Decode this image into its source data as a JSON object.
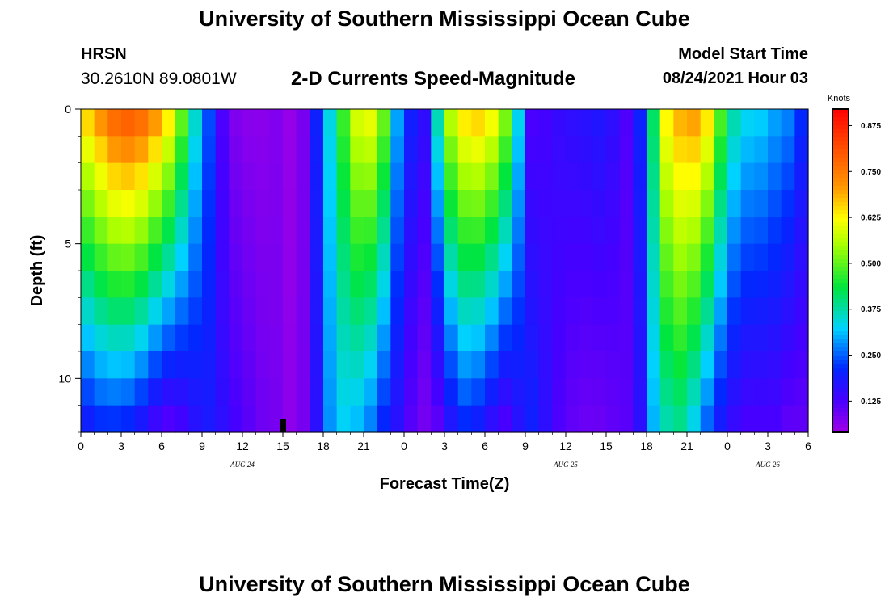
{
  "header": {
    "title": "University of Southern Mississippi Ocean Cube",
    "station": "HRSN",
    "coordinates": "30.2610N  89.0801W",
    "subtitle": "2-D Currents Speed-Magnitude",
    "model_start_label": "Model Start Time",
    "model_start_value": "08/24/2021 Hour 03"
  },
  "footer": {
    "title": "University of Southern Mississippi Ocean Cube"
  },
  "chart_data": {
    "type": "heatmap",
    "title": "2-D Currents Speed-Magnitude",
    "xlabel": "Forecast Time(Z)",
    "ylabel": "Depth (ft)",
    "x_hours_range": [
      0,
      54
    ],
    "x_tick_labels": [
      "0",
      "3",
      "6",
      "9",
      "12",
      "15",
      "18",
      "21",
      "0",
      "3",
      "6",
      "9",
      "12",
      "15",
      "18",
      "21",
      "0",
      "3",
      "6"
    ],
    "date_labels": [
      {
        "label": "AUG 24",
        "hour": 12
      },
      {
        "label": "AUG 25",
        "hour": 36
      },
      {
        "label": "AUG 26",
        "hour": 51
      }
    ],
    "y_range_ft": [
      0,
      12
    ],
    "y_tick_labels": [
      "0",
      "5",
      "10"
    ],
    "y_tick_values": [
      0,
      5,
      10
    ],
    "current_time_marker_hour": 15,
    "colorbar": {
      "title": "Knots",
      "range": [
        0.04,
        0.92
      ],
      "tick_labels": [
        "0.875",
        "0.750",
        "0.625",
        "0.500",
        "0.375",
        "0.250",
        "0.125"
      ],
      "tick_values": [
        0.875,
        0.75,
        0.625,
        0.5,
        0.375,
        0.25,
        0.125
      ]
    },
    "columns_per_hour": 1,
    "surface_speed_by_hour": [
      0.68,
      0.74,
      0.8,
      0.82,
      0.8,
      0.74,
      0.66,
      0.52,
      0.36,
      0.24,
      0.12,
      0.07,
      0.06,
      0.06,
      0.07,
      0.05,
      0.08,
      0.2,
      0.34,
      0.48,
      0.6,
      0.62,
      0.52,
      0.3,
      0.2,
      0.16,
      0.38,
      0.58,
      0.66,
      0.68,
      0.64,
      0.54,
      0.34,
      0.12,
      0.13,
      0.15,
      0.16,
      0.17,
      0.18,
      0.16,
      0.12,
      0.2,
      0.42,
      0.64,
      0.7,
      0.72,
      0.66,
      0.5,
      0.38,
      0.34,
      0.33,
      0.3,
      0.28,
      0.22,
      0.18
    ],
    "bottom_speed_by_hour": [
      0.18,
      0.2,
      0.2,
      0.19,
      0.16,
      0.12,
      0.1,
      0.12,
      0.16,
      0.18,
      0.16,
      0.13,
      0.11,
      0.09,
      0.08,
      0.06,
      0.08,
      0.16,
      0.28,
      0.32,
      0.3,
      0.26,
      0.2,
      0.16,
      0.11,
      0.08,
      0.1,
      0.16,
      0.2,
      0.18,
      0.14,
      0.11,
      0.16,
      0.2,
      0.16,
      0.12,
      0.1,
      0.09,
      0.09,
      0.1,
      0.11,
      0.16,
      0.3,
      0.36,
      0.38,
      0.32,
      0.24,
      0.18,
      0.14,
      0.12,
      0.12,
      0.12,
      0.1,
      0.1,
      0.1
    ],
    "layer_depths_ft": [
      0,
      1,
      2,
      3,
      4,
      5,
      6,
      7,
      8,
      9,
      10,
      11,
      12
    ]
  }
}
